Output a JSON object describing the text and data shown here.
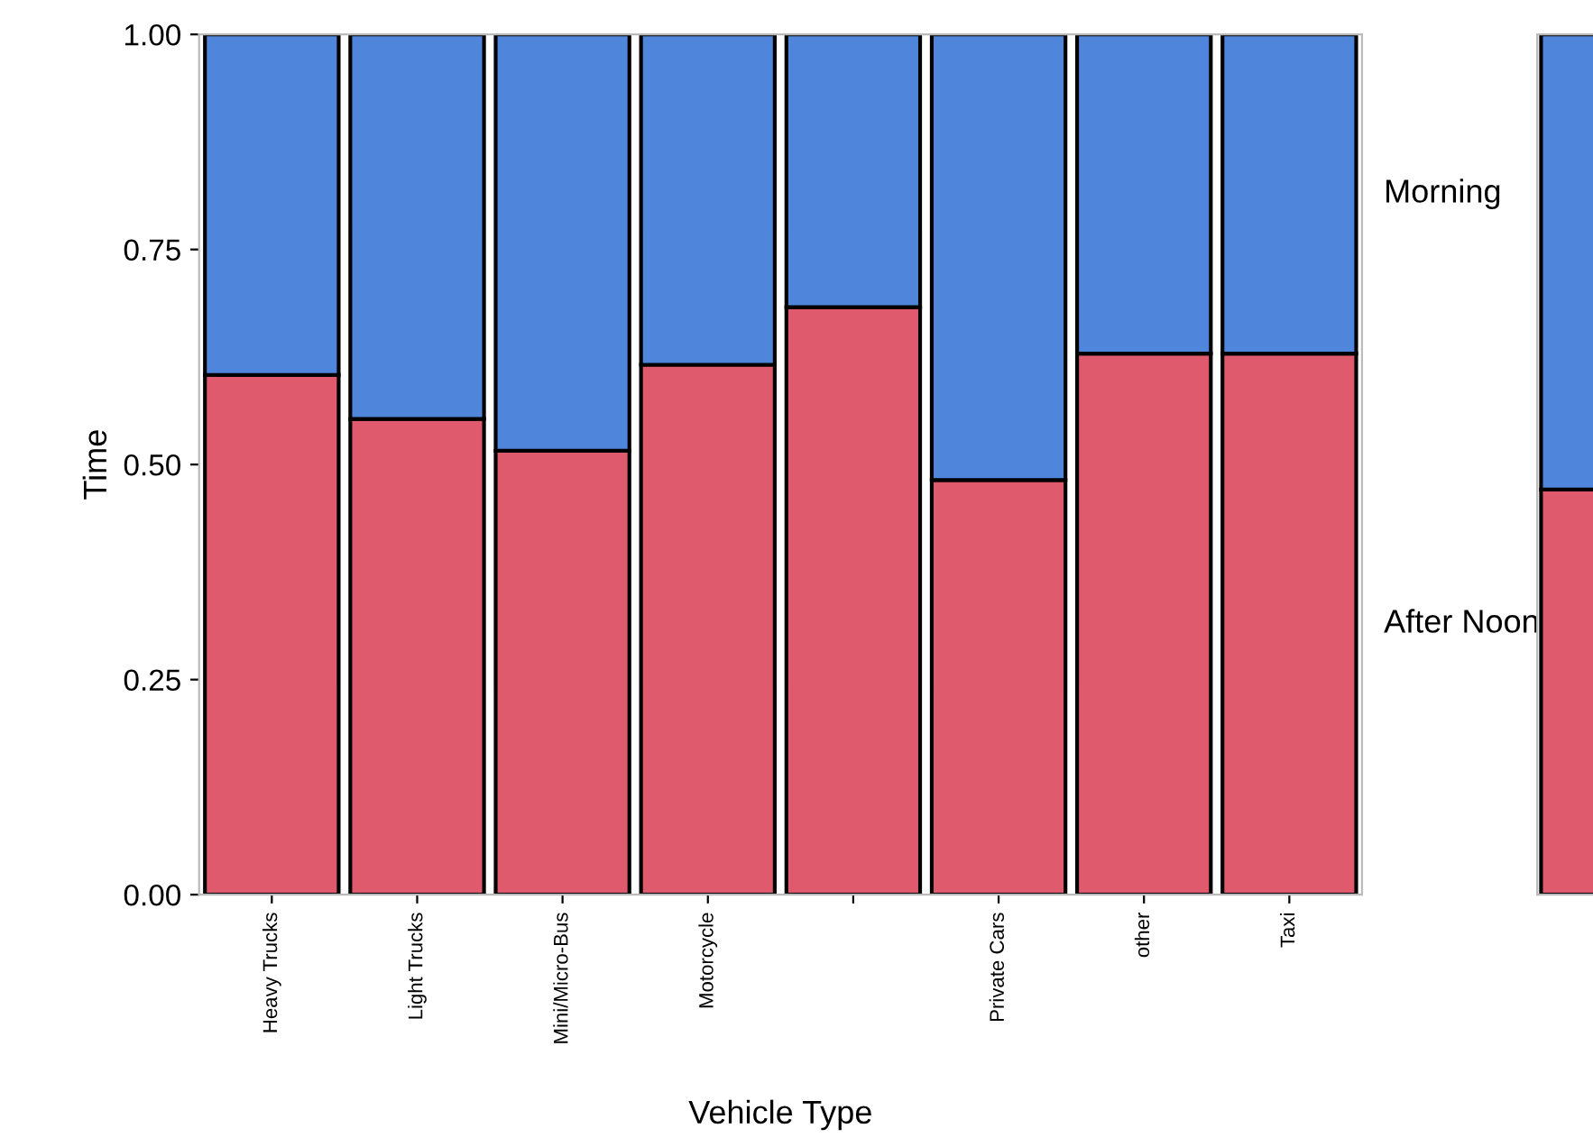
{
  "chart_data": [
    {
      "type": "bar",
      "stacked": true,
      "xlabel": "Vehicle Type",
      "ylabel": "Time",
      "categories": [
        "Heavy Trucks",
        "Light Trucks",
        "Mini/Micro-Bus",
        "Motorcycle",
        null,
        "Private Cars",
        "other",
        "Taxi"
      ],
      "series": [
        {
          "name": "After Noon",
          "color": "#e05a6e",
          "values": [
            0.604,
            0.553,
            0.516,
            0.616,
            0.683,
            0.482,
            0.629,
            0.629
          ]
        },
        {
          "name": "Morning",
          "color": "#4f86dc",
          "values": [
            0.396,
            0.447,
            0.484,
            0.384,
            0.317,
            0.518,
            0.371,
            0.371
          ]
        }
      ],
      "ylim": [
        0,
        1
      ],
      "yticks": [
        {
          "value": 0,
          "label": "0.00"
        },
        {
          "value": 0.25,
          "label": "0.25"
        },
        {
          "value": 0.5,
          "label": "0.50"
        },
        {
          "value": 0.75,
          "label": "0.75"
        },
        {
          "value": 1,
          "label": "1.00"
        }
      ],
      "grid": false,
      "legend": "right"
    },
    {
      "type": "bar",
      "stacked": true,
      "categories": [
        null
      ],
      "series": [
        {
          "color": "#e05a6e",
          "values": [
            0.471
          ]
        },
        {
          "color": "#4f86dc",
          "values": [
            0.529
          ]
        }
      ],
      "ylim": [
        0,
        1
      ],
      "tick_labels": false,
      "grid": false
    }
  ]
}
